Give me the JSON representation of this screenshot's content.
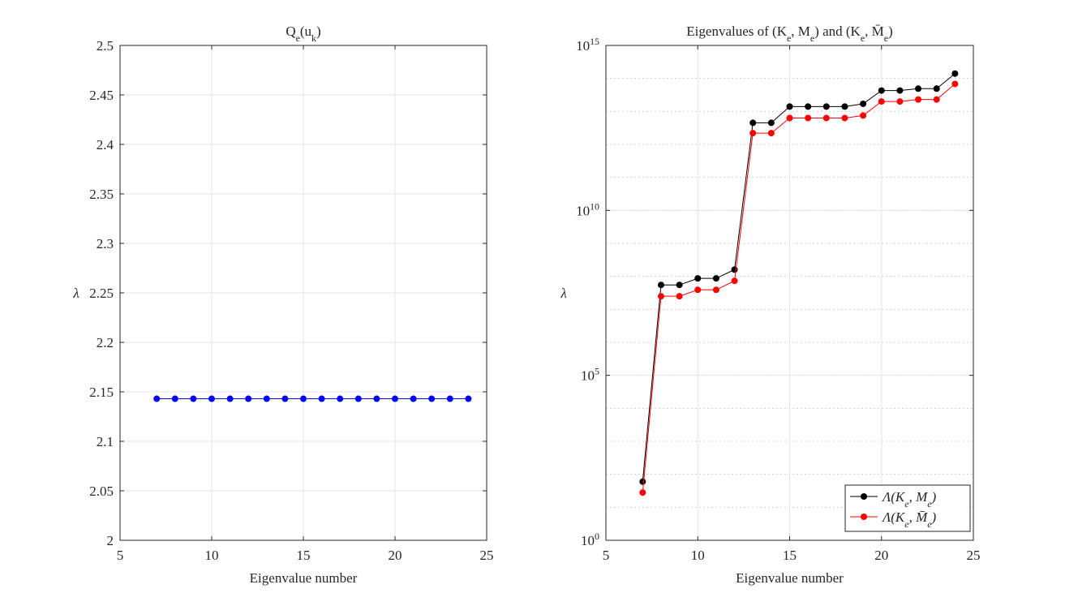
{
  "chart_data": [
    {
      "type": "line",
      "title": "Q_e(u_k)",
      "xlabel": "Eigenvalue number",
      "ylabel": "λ",
      "x": [
        7,
        8,
        9,
        10,
        11,
        12,
        13,
        14,
        15,
        16,
        17,
        18,
        19,
        20,
        21,
        22,
        23,
        24
      ],
      "values": [
        2.143,
        2.143,
        2.143,
        2.143,
        2.143,
        2.143,
        2.143,
        2.143,
        2.143,
        2.143,
        2.143,
        2.143,
        2.143,
        2.143,
        2.143,
        2.143,
        2.143,
        2.143
      ],
      "color": "#0000ff",
      "xlim": [
        5,
        25
      ],
      "xticks": [
        5,
        10,
        15,
        20,
        25
      ],
      "ylim": [
        2,
        2.5
      ],
      "yticks": [
        2,
        2.05,
        2.1,
        2.15,
        2.2,
        2.25,
        2.3,
        2.35,
        2.4,
        2.45,
        2.5
      ],
      "grid": true
    },
    {
      "type": "line",
      "title": "Eigenvalues of (K_e, M_e) and (K_e, M̄_e)",
      "xlabel": "Eigenvalue number",
      "ylabel": "λ",
      "x": [
        7,
        8,
        9,
        10,
        11,
        12,
        13,
        14,
        15,
        16,
        17,
        18,
        19,
        20,
        21,
        22,
        23,
        24
      ],
      "series": [
        {
          "name": "Λ(K_e, M_e)",
          "color": "#000000",
          "values": [
            60,
            55000000.0,
            55000000.0,
            87000000.0,
            87000000.0,
            160000000.0,
            4500000000000.0,
            4500000000000.0,
            14000000000000.0,
            14000000000000.0,
            14000000000000.0,
            14000000000000.0,
            17000000000000.0,
            43000000000000.0,
            43000000000000.0,
            49000000000000.0,
            49000000000000.0,
            140000000000000.0
          ]
        },
        {
          "name": "Λ(K_e, M̄_e)",
          "color": "#ff0000",
          "values": [
            28,
            25000000.0,
            25000000.0,
            39000000.0,
            39000000.0,
            73000000.0,
            2200000000000.0,
            2200000000000.0,
            6300000000000.0,
            6300000000000.0,
            6300000000000.0,
            6300000000000.0,
            7500000000000.0,
            20000000000000.0,
            20000000000000.0,
            23000000000000.0,
            23000000000000.0,
            68000000000000.0
          ]
        }
      ],
      "xlim": [
        5,
        25
      ],
      "xticks": [
        5,
        10,
        15,
        20,
        25
      ],
      "ylim": [
        1,
        1000000000000000.0
      ],
      "log_y": true,
      "yticks": [
        {
          "value": 1,
          "label": "10^0"
        },
        {
          "value": 100000,
          "label": "10^5"
        },
        {
          "value": 10000000000,
          "label": "10^{10}"
        },
        {
          "value": 1000000000000000.0,
          "label": "10^{15}"
        }
      ],
      "grid": true,
      "minor_grid": true,
      "legend": "lower right"
    }
  ]
}
